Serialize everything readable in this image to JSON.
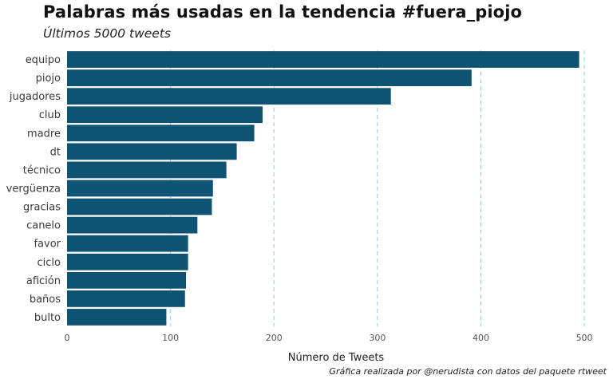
{
  "chart_data": {
    "type": "bar",
    "orientation": "horizontal",
    "title": "Palabras más usadas en la tendencia #fuera_piojo",
    "subtitle": "Últimos 5000 tweets",
    "caption": "Gráfica realizada por @nerudista con datos del paquete rtweet",
    "xlabel": "Número de Tweets",
    "ylabel": "",
    "categories": [
      "equipo",
      "piojo",
      "jugadores",
      "club",
      "madre",
      "dt",
      "técnico",
      "vergüenza",
      "gracias",
      "canelo",
      "favor",
      "ciclo",
      "afición",
      "baños",
      "bulto"
    ],
    "values": [
      495,
      391,
      313,
      189,
      181,
      164,
      154,
      141,
      140,
      126,
      117,
      117,
      115,
      114,
      96
    ],
    "xlim": [
      0,
      520
    ],
    "xticks": [
      0,
      100,
      200,
      300,
      400,
      500
    ],
    "xtick_labels": [
      "0",
      "100",
      "200",
      "300",
      "400",
      "500"
    ],
    "grid": "vertical dashed",
    "legend": "none",
    "colors": {
      "bar": "#0f5372",
      "grid": "#8ecde8"
    }
  }
}
